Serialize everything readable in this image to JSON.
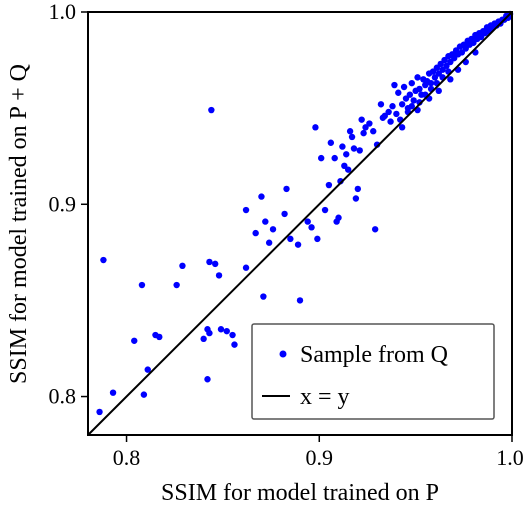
{
  "chart_data": {
    "type": "scatter",
    "xlabel": "SSIM for model trained on P",
    "ylabel": "SSIM for model trained on P + Q",
    "xlim": [
      0.78,
      1.0
    ],
    "ylim": [
      0.78,
      1.0
    ],
    "xticks": [
      "0.8",
      "0.9",
      "1.0"
    ],
    "yticks": [
      "0.8",
      "0.9",
      "1.0"
    ],
    "grid": false,
    "legend_position": "lower-right",
    "series": [
      {
        "name": "Sample from Q",
        "kind": "scatter",
        "color": "#0000ff",
        "points": [
          [
            0.786,
            0.792
          ],
          [
            0.788,
            0.871
          ],
          [
            0.793,
            0.802
          ],
          [
            0.804,
            0.829
          ],
          [
            0.808,
            0.858
          ],
          [
            0.809,
            0.801
          ],
          [
            0.811,
            0.814
          ],
          [
            0.815,
            0.832
          ],
          [
            0.817,
            0.831
          ],
          [
            0.826,
            0.858
          ],
          [
            0.829,
            0.868
          ],
          [
            0.84,
            0.83
          ],
          [
            0.842,
            0.835
          ],
          [
            0.842,
            0.809
          ],
          [
            0.843,
            0.833
          ],
          [
            0.843,
            0.87
          ],
          [
            0.844,
            0.949
          ],
          [
            0.846,
            0.869
          ],
          [
            0.848,
            0.863
          ],
          [
            0.849,
            0.835
          ],
          [
            0.852,
            0.834
          ],
          [
            0.855,
            0.832
          ],
          [
            0.856,
            0.827
          ],
          [
            0.862,
            0.867
          ],
          [
            0.862,
            0.897
          ],
          [
            0.867,
            0.885
          ],
          [
            0.87,
            0.904
          ],
          [
            0.871,
            0.852
          ],
          [
            0.872,
            0.891
          ],
          [
            0.874,
            0.88
          ],
          [
            0.876,
            0.887
          ],
          [
            0.882,
            0.895
          ],
          [
            0.883,
            0.908
          ],
          [
            0.885,
            0.882
          ],
          [
            0.889,
            0.879
          ],
          [
            0.89,
            0.85
          ],
          [
            0.894,
            0.891
          ],
          [
            0.896,
            0.888
          ],
          [
            0.898,
            0.94
          ],
          [
            0.899,
            0.882
          ],
          [
            0.901,
            0.924
          ],
          [
            0.903,
            0.897
          ],
          [
            0.905,
            0.91
          ],
          [
            0.906,
            0.932
          ],
          [
            0.908,
            0.924
          ],
          [
            0.909,
            0.891
          ],
          [
            0.91,
            0.893
          ],
          [
            0.911,
            0.912
          ],
          [
            0.912,
            0.93
          ],
          [
            0.913,
            0.92
          ],
          [
            0.914,
            0.926
          ],
          [
            0.915,
            0.918
          ],
          [
            0.916,
            0.938
          ],
          [
            0.917,
            0.935
          ],
          [
            0.918,
            0.929
          ],
          [
            0.919,
            0.903
          ],
          [
            0.92,
            0.908
          ],
          [
            0.921,
            0.928
          ],
          [
            0.922,
            0.944
          ],
          [
            0.923,
            0.937
          ],
          [
            0.924,
            0.94
          ],
          [
            0.926,
            0.942
          ],
          [
            0.928,
            0.938
          ],
          [
            0.929,
            0.887
          ],
          [
            0.93,
            0.931
          ],
          [
            0.932,
            0.952
          ],
          [
            0.933,
            0.945
          ],
          [
            0.934,
            0.946
          ],
          [
            0.936,
            0.948
          ],
          [
            0.937,
            0.943
          ],
          [
            0.938,
            0.951
          ],
          [
            0.939,
            0.962
          ],
          [
            0.94,
            0.947
          ],
          [
            0.941,
            0.958
          ],
          [
            0.942,
            0.944
          ],
          [
            0.943,
            0.952
          ],
          [
            0.944,
            0.961
          ],
          [
            0.945,
            0.955
          ],
          [
            0.946,
            0.95
          ],
          [
            0.947,
            0.957
          ],
          [
            0.948,
            0.963
          ],
          [
            0.949,
            0.954
          ],
          [
            0.95,
            0.959
          ],
          [
            0.951,
            0.966
          ],
          [
            0.952,
            0.96
          ],
          [
            0.953,
            0.957
          ],
          [
            0.954,
            0.965
          ],
          [
            0.955,
            0.962
          ],
          [
            0.956,
            0.964
          ],
          [
            0.957,
            0.968
          ],
          [
            0.958,
            0.963
          ],
          [
            0.959,
            0.969
          ],
          [
            0.96,
            0.966
          ],
          [
            0.961,
            0.971
          ],
          [
            0.962,
            0.968
          ],
          [
            0.963,
            0.973
          ],
          [
            0.964,
            0.97
          ],
          [
            0.965,
            0.975
          ],
          [
            0.966,
            0.972
          ],
          [
            0.967,
            0.977
          ],
          [
            0.968,
            0.974
          ],
          [
            0.969,
            0.978
          ],
          [
            0.97,
            0.976
          ],
          [
            0.971,
            0.98
          ],
          [
            0.972,
            0.978
          ],
          [
            0.973,
            0.982
          ],
          [
            0.974,
            0.979
          ],
          [
            0.975,
            0.983
          ],
          [
            0.976,
            0.981
          ],
          [
            0.977,
            0.985
          ],
          [
            0.978,
            0.983
          ],
          [
            0.979,
            0.986
          ],
          [
            0.98,
            0.984
          ],
          [
            0.981,
            0.988
          ],
          [
            0.982,
            0.986
          ],
          [
            0.983,
            0.989
          ],
          [
            0.984,
            0.987
          ],
          [
            0.985,
            0.99
          ],
          [
            0.986,
            0.989
          ],
          [
            0.987,
            0.992
          ],
          [
            0.988,
            0.99
          ],
          [
            0.989,
            0.993
          ],
          [
            0.99,
            0.992
          ],
          [
            0.991,
            0.994
          ],
          [
            0.992,
            0.993
          ],
          [
            0.993,
            0.995
          ],
          [
            0.994,
            0.994
          ],
          [
            0.995,
            0.996
          ],
          [
            0.996,
            0.996
          ],
          [
            0.997,
            0.998
          ],
          [
            0.998,
            0.997
          ],
          [
            0.999,
            0.999
          ],
          [
            0.946,
            0.948
          ],
          [
            0.948,
            0.951
          ],
          [
            0.952,
            0.953
          ],
          [
            0.955,
            0.957
          ],
          [
            0.958,
            0.96
          ],
          [
            0.961,
            0.963
          ],
          [
            0.964,
            0.966
          ],
          [
            0.967,
            0.969
          ],
          [
            0.943,
            0.94
          ],
          [
            0.951,
            0.949
          ],
          [
            0.957,
            0.955
          ],
          [
            0.962,
            0.959
          ],
          [
            0.968,
            0.965
          ],
          [
            0.972,
            0.97
          ],
          [
            0.976,
            0.974
          ],
          [
            0.981,
            0.979
          ]
        ]
      },
      {
        "name": "x = y",
        "kind": "line",
        "color": "#000000",
        "x": [
          0.78,
          1.0
        ],
        "y": [
          0.78,
          1.0
        ]
      }
    ]
  }
}
